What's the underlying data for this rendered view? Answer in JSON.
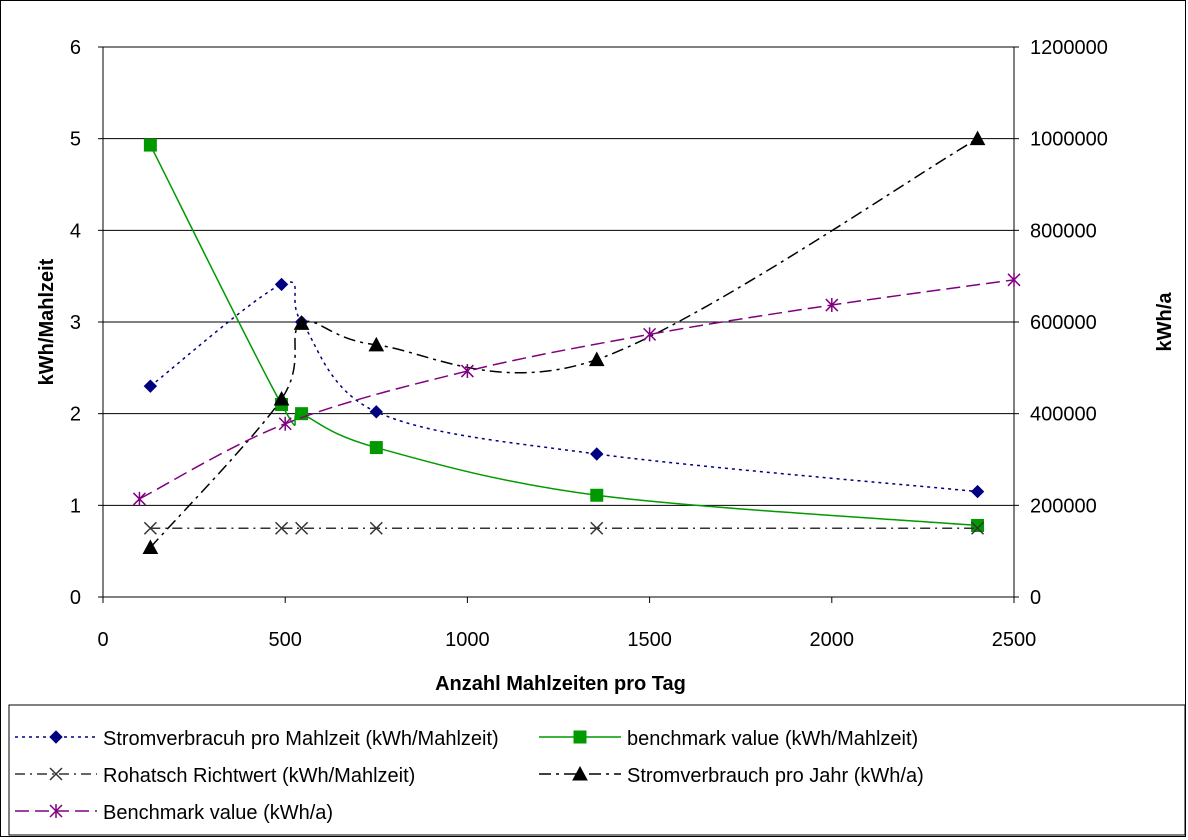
{
  "chart_data": {
    "type": "line",
    "title": "",
    "xlabel": "Anzahl Mahlzeiten pro Tag",
    "ylabel": "kWh/Mahlzeit",
    "y2label": "kWh/a",
    "xlim": [
      0,
      2500
    ],
    "ylim": [
      0,
      6
    ],
    "y2lim": [
      0,
      1200000
    ],
    "x_ticks": [
      "0",
      "500",
      "1000",
      "1500",
      "2000",
      "2500"
    ],
    "y_ticks": [
      "0",
      "1",
      "2",
      "3",
      "4",
      "5",
      "6"
    ],
    "y2_ticks": [
      "0",
      "200000",
      "400000",
      "600000",
      "800000",
      "1000000",
      "1200000"
    ],
    "grid": "horizontal",
    "legend_position": "bottom",
    "series": [
      {
        "name": "Stromverbracuh pro Mahlzeit (kWh/Mahlzeit)",
        "axis": "left",
        "color": "#000080",
        "dash": "3,4",
        "marker": "diamond",
        "x": [
          130,
          490,
          545,
          750,
          1355,
          2400
        ],
        "y": [
          2.3,
          3.41,
          3.0,
          2.02,
          1.56,
          1.15
        ]
      },
      {
        "name": "benchmark value (kWh/Mahlzeit)",
        "axis": "left",
        "color": "#009900",
        "dash": "",
        "marker": "square",
        "x": [
          130,
          490,
          545,
          750,
          1355,
          2400
        ],
        "y": [
          4.93,
          2.1,
          2.0,
          1.63,
          1.11,
          0.78
        ]
      },
      {
        "name": "Rohatsch Richtwert (kWh/Mahlzeit)",
        "axis": "left",
        "color": "#333333",
        "dash": "10,5,2,5",
        "marker": "x",
        "x": [
          130,
          490,
          545,
          750,
          1355,
          2400
        ],
        "y": [
          0.75,
          0.75,
          0.75,
          0.75,
          0.75,
          0.75
        ]
      },
      {
        "name": "Stromverbrauch pro Jahr (kWh/a)",
        "axis": "right",
        "color": "#000000",
        "dash": "12,5,3,5",
        "marker": "triangle",
        "x": [
          130,
          490,
          545,
          750,
          1355,
          2400
        ],
        "y": [
          108000,
          432000,
          597000,
          550000,
          518000,
          1000000
        ]
      },
      {
        "name": "Benchmark value (kWh/a)",
        "axis": "right",
        "color": "#800080",
        "dash": "14,6",
        "marker": "star",
        "x": [
          100,
          500,
          1000,
          1500,
          2000,
          2500
        ],
        "y": [
          214000,
          378000,
          493000,
          573000,
          637000,
          692000
        ]
      }
    ]
  }
}
